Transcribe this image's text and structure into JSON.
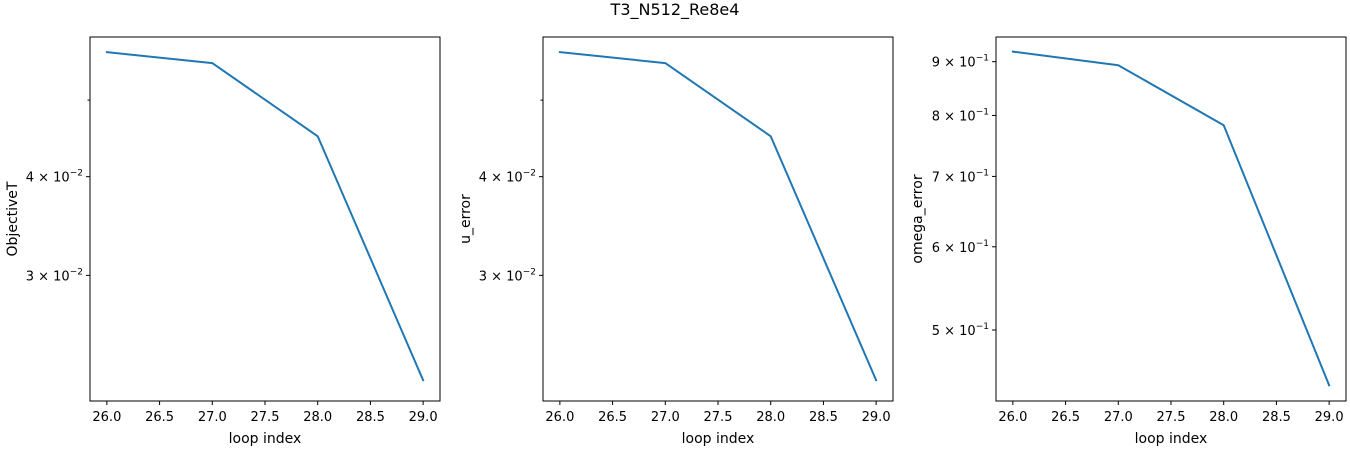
{
  "figure": {
    "title": "T3_N512_Re8e4"
  },
  "chart_data": [
    {
      "type": "line",
      "title": "",
      "xlabel": "loop index",
      "ylabel": "ObjectiveT",
      "yscale": "log",
      "x": [
        26,
        27,
        28,
        29
      ],
      "series": [
        {
          "values": [
            0.0575,
            0.0557,
            0.045,
            0.0221
          ]
        }
      ],
      "color": "#1f77b4",
      "xlim": [
        25.84,
        29.16
      ],
      "ylim": [
        0.0208,
        0.0601
      ],
      "xticks": [
        26.0,
        26.5,
        27.0,
        27.5,
        28.0,
        28.5,
        29.0
      ],
      "xtick_labels": [
        "26.0",
        "26.5",
        "27.0",
        "27.5",
        "28.0",
        "28.5",
        "29.0"
      ],
      "yticks": [
        0.03,
        0.04
      ],
      "ytick_labels": [
        {
          "base": "3 × 10",
          "exp": "−2"
        },
        {
          "base": "4 × 10",
          "exp": "−2"
        }
      ],
      "yminor_ticks": [
        0.05
      ],
      "grid": false
    },
    {
      "type": "line",
      "title": "",
      "xlabel": "loop index",
      "ylabel": "u_error",
      "yscale": "log",
      "x": [
        26,
        27,
        28,
        29
      ],
      "series": [
        {
          "values": [
            0.0575,
            0.0557,
            0.045,
            0.0221
          ]
        }
      ],
      "color": "#1f77b4",
      "xlim": [
        25.84,
        29.16
      ],
      "ylim": [
        0.0208,
        0.0601
      ],
      "xticks": [
        26.0,
        26.5,
        27.0,
        27.5,
        28.0,
        28.5,
        29.0
      ],
      "xtick_labels": [
        "26.0",
        "26.5",
        "27.0",
        "27.5",
        "28.0",
        "28.5",
        "29.0"
      ],
      "yticks": [
        0.03,
        0.04
      ],
      "ytick_labels": [
        {
          "base": "3 × 10",
          "exp": "−2"
        },
        {
          "base": "4 × 10",
          "exp": "−2"
        }
      ],
      "yminor_ticks": [
        0.05
      ],
      "grid": false
    },
    {
      "type": "line",
      "title": "",
      "xlabel": "loop index",
      "ylabel": "omega_error",
      "yscale": "log",
      "x": [
        26,
        27,
        28,
        29
      ],
      "series": [
        {
          "values": [
            0.92,
            0.893,
            0.783,
            0.443
          ]
        }
      ],
      "color": "#1f77b4",
      "xlim": [
        25.84,
        29.16
      ],
      "ylim": [
        0.428,
        0.95
      ],
      "xticks": [
        26.0,
        26.5,
        27.0,
        27.5,
        28.0,
        28.5,
        29.0
      ],
      "xtick_labels": [
        "26.0",
        "26.5",
        "27.0",
        "27.5",
        "28.0",
        "28.5",
        "29.0"
      ],
      "yticks": [
        0.5,
        0.6,
        0.7,
        0.8,
        0.9
      ],
      "ytick_labels": [
        {
          "base": "5 × 10",
          "exp": "−1"
        },
        {
          "base": "6 × 10",
          "exp": "−1"
        },
        {
          "base": "7 × 10",
          "exp": "−1"
        },
        {
          "base": "8 × 10",
          "exp": "−1"
        },
        {
          "base": "9 × 10",
          "exp": "−1"
        }
      ],
      "yminor_ticks": [],
      "grid": false
    }
  ]
}
